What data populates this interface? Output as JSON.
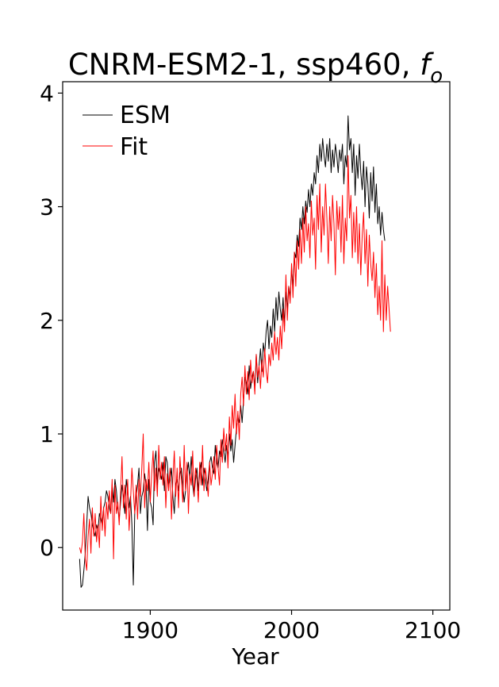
{
  "chart_data": {
    "type": "line",
    "title": "CNRM-ESM2-1, ssp460, ",
    "title_symbol": "f",
    "title_subscript": "o",
    "xlabel": "Year",
    "ylabel": "",
    "xlim": [
      1838,
      2112
    ],
    "ylim": [
      -0.55,
      4.1
    ],
    "xticks": [
      1900,
      2000,
      2100
    ],
    "yticks": [
      0,
      1,
      2,
      3,
      4
    ],
    "legend_position": "top-left",
    "grid": false,
    "x_start": 1850,
    "series": [
      {
        "name": "ESM",
        "color": "#000000",
        "values": [
          -0.1,
          -0.35,
          -0.33,
          -0.2,
          -0.05,
          0.2,
          0.45,
          0.35,
          0.3,
          0.2,
          0.15,
          0.1,
          0.2,
          0.15,
          0.3,
          0.25,
          0.2,
          0.35,
          0.4,
          0.5,
          0.45,
          0.35,
          0.3,
          0.55,
          0.4,
          0.6,
          0.5,
          0.35,
          0.25,
          0.4,
          0.55,
          0.45,
          0.3,
          0.6,
          0.5,
          0.35,
          0.45,
          0.2,
          -0.33,
          0.3,
          0.45,
          0.55,
          0.7,
          0.3,
          0.45,
          0.5,
          0.65,
          0.55,
          0.15,
          0.6,
          0.4,
          0.35,
          0.2,
          0.75,
          0.85,
          0.55,
          0.7,
          0.65,
          0.6,
          0.75,
          0.5,
          0.8,
          0.75,
          0.55,
          0.6,
          0.7,
          0.45,
          0.3,
          0.55,
          0.6,
          0.5,
          0.65,
          0.7,
          0.55,
          0.4,
          0.5,
          0.65,
          0.75,
          0.6,
          0.8,
          0.55,
          0.45,
          0.6,
          0.7,
          0.5,
          0.65,
          0.75,
          0.55,
          0.7,
          0.6,
          0.5,
          0.6,
          0.75,
          0.8,
          0.7,
          0.65,
          0.9,
          0.75,
          0.7,
          0.85,
          0.8,
          0.95,
          0.85,
          0.75,
          0.9,
          0.8,
          1.0,
          0.85,
          0.95,
          0.75,
          0.9,
          1.05,
          1.15,
          1.1,
          1.25,
          1.1,
          1.3,
          1.5,
          1.45,
          1.35,
          1.6,
          1.4,
          1.5,
          1.55,
          1.4,
          1.7,
          1.45,
          1.6,
          1.75,
          1.55,
          1.8,
          1.7,
          1.9,
          2.0,
          1.75,
          1.95,
          1.85,
          2.1,
          1.9,
          2.2,
          2.0,
          2.25,
          2.1,
          2.0,
          2.2,
          1.95,
          2.25,
          2.1,
          2.3,
          2.2,
          2.45,
          2.3,
          2.6,
          2.55,
          2.75,
          2.65,
          2.9,
          2.8,
          3.0,
          2.85,
          3.05,
          2.95,
          3.15,
          3.0,
          3.2,
          3.1,
          3.3,
          3.2,
          3.45,
          3.3,
          3.55,
          3.4,
          3.6,
          3.45,
          3.35,
          3.55,
          3.4,
          3.6,
          3.3,
          3.5,
          3.35,
          3.55,
          3.45,
          3.3,
          3.5,
          3.4,
          3.55,
          3.2,
          3.45,
          3.35,
          3.8,
          3.5,
          3.6,
          3.3,
          3.55,
          3.1,
          3.45,
          3.25,
          3.55,
          3.3,
          3.15,
          3.4,
          3.0,
          3.35,
          3.2,
          2.9,
          3.3,
          3.05,
          3.35,
          2.95,
          3.2,
          2.85,
          3.0,
          2.75,
          2.95,
          2.8,
          2.7
        ]
      },
      {
        "name": "Fit",
        "color": "#ff0000",
        "values": [
          0.0,
          -0.05,
          0.05,
          0.3,
          -0.1,
          -0.2,
          0.1,
          0.25,
          -0.05,
          0.35,
          0.1,
          0.3,
          0.05,
          0.2,
          0.0,
          0.45,
          0.15,
          0.35,
          0.1,
          0.4,
          0.25,
          0.5,
          0.3,
          0.6,
          -0.1,
          0.55,
          0.3,
          0.4,
          0.2,
          0.5,
          0.8,
          0.35,
          0.55,
          0.25,
          0.6,
          0.15,
          0.4,
          0.7,
          0.5,
          0.3,
          0.55,
          0.25,
          0.6,
          0.45,
          0.7,
          1.0,
          0.35,
          0.6,
          0.5,
          0.75,
          0.4,
          0.65,
          0.85,
          0.5,
          0.7,
          0.45,
          0.9,
          0.6,
          0.75,
          0.55,
          0.8,
          0.35,
          0.65,
          0.5,
          0.7,
          0.25,
          0.6,
          0.85,
          0.45,
          0.7,
          0.35,
          0.8,
          0.6,
          0.4,
          0.9,
          0.5,
          0.75,
          0.3,
          0.65,
          0.55,
          0.85,
          0.45,
          0.7,
          0.6,
          0.4,
          0.75,
          0.55,
          0.9,
          0.5,
          0.7,
          0.6,
          0.45,
          0.75,
          0.55,
          0.65,
          0.8,
          0.6,
          0.9,
          0.7,
          0.55,
          0.95,
          0.75,
          1.05,
          0.85,
          1.0,
          0.7,
          1.15,
          0.9,
          1.25,
          1.05,
          1.35,
          1.0,
          1.2,
          0.95,
          1.35,
          1.5,
          1.25,
          1.6,
          1.35,
          1.55,
          1.3,
          1.65,
          1.45,
          1.55,
          1.35,
          1.7,
          1.5,
          1.6,
          1.4,
          1.65,
          1.5,
          1.75,
          1.55,
          1.45,
          1.7,
          1.6,
          1.8,
          1.65,
          1.9,
          1.7,
          1.85,
          1.65,
          1.95,
          1.75,
          2.1,
          1.9,
          2.4,
          2.0,
          2.3,
          2.15,
          2.5,
          2.2,
          2.6,
          2.3,
          2.7,
          2.45,
          2.8,
          2.5,
          2.9,
          2.6,
          3.0,
          2.7,
          2.85,
          2.55,
          3.05,
          2.75,
          2.9,
          2.45,
          3.1,
          2.8,
          3.2,
          2.6,
          3.0,
          2.75,
          3.2,
          2.9,
          2.5,
          3.0,
          2.7,
          3.1,
          2.85,
          2.4,
          3.05,
          2.8,
          3.0,
          2.6,
          3.1,
          2.5,
          2.9,
          2.7,
          3.45,
          2.9,
          3.1,
          2.55,
          2.95,
          2.6,
          3.0,
          2.5,
          2.85,
          2.4,
          2.75,
          2.95,
          2.5,
          2.8,
          2.3,
          2.75,
          2.5,
          2.35,
          2.6,
          2.2,
          2.5,
          2.05,
          2.3,
          2.0,
          2.7,
          1.9,
          2.4,
          2.0,
          2.3,
          2.1,
          1.9
        ]
      }
    ]
  }
}
